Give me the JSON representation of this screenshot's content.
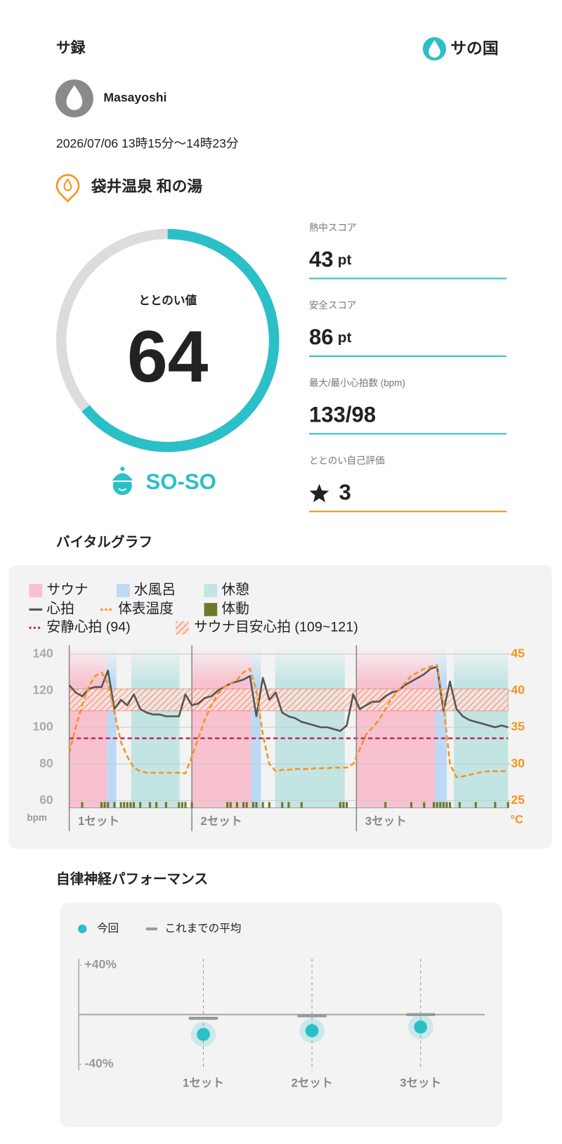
{
  "header": {
    "title": "サ録",
    "logo": "サの国"
  },
  "user": {
    "name": "Masayoshi"
  },
  "session": {
    "datetime": "2026/07/06 13時15分〜14時23分"
  },
  "facility": {
    "name": "袋井温泉 和の湯"
  },
  "gauge": {
    "label": "ととのい値",
    "value": 64,
    "color": "#2bbfc8"
  },
  "status": {
    "label": "SO-SO"
  },
  "scores": [
    {
      "label": "熱中スコア",
      "value": 43,
      "unit": "pt",
      "color": "#2bbfc8"
    },
    {
      "label": "安全スコア",
      "value": 86,
      "unit": "pt",
      "color": "#2bbfc8"
    },
    {
      "label": "最大/最小心拍数 (bpm)",
      "value": "133/98",
      "color": "#2bbfc8"
    },
    {
      "label": "ととのい自己評価",
      "value": 3,
      "icon": "star",
      "color": "#f7941d"
    }
  ],
  "chart_data": [
    {
      "type": "line",
      "title": "バイタルグラフ",
      "x": [
        0,
        1,
        2,
        3,
        4,
        5,
        6,
        7,
        8,
        9,
        10,
        11,
        12,
        13,
        14,
        15,
        16,
        17,
        18,
        19,
        20,
        21,
        22,
        23,
        24,
        25,
        26,
        27,
        28,
        29,
        30,
        31,
        32,
        33,
        34,
        35,
        36,
        37,
        38,
        39,
        40,
        41,
        42,
        43,
        44,
        45,
        46,
        47,
        48,
        49,
        50,
        51,
        52,
        53,
        54,
        55,
        56,
        57,
        58,
        59,
        60,
        61,
        62,
        63,
        64,
        65,
        66,
        67,
        68
      ],
      "xlim": [
        0,
        68
      ],
      "xticks": [
        {
          "value": 0,
          "label": "1セット"
        },
        {
          "value": 19,
          "label": "2セット"
        },
        {
          "value": 44.5,
          "label": "3セット"
        }
      ],
      "ylim": [
        56,
        144
      ],
      "yticks": [
        60,
        80,
        100,
        120,
        140
      ],
      "ylabel": "bpm",
      "y2lim": [
        24,
        46
      ],
      "y2ticks": [
        25,
        30,
        35,
        40,
        45
      ],
      "y2label": "°C",
      "grid": true,
      "bands": [
        {
          "name": "サウナ",
          "color": "#f8c1cf",
          "spans": [
            [
              0,
              5.9
            ],
            [
              19,
              28.2
            ],
            [
              44.5,
              56.7
            ]
          ]
        },
        {
          "name": "水風呂",
          "color": "#bcd9f5",
          "spans": [
            [
              5.9,
              7.3
            ],
            [
              28.2,
              29.7
            ],
            [
              56.7,
              58.5
            ]
          ]
        },
        {
          "name": "休憩",
          "color": "#c2e4e3",
          "spans": [
            [
              9.6,
              17.1
            ],
            [
              31.9,
              42.7
            ],
            [
              59.6,
              68
            ]
          ]
        }
      ],
      "series": [
        {
          "name": "心拍",
          "color": "#555555",
          "values": [
            123,
            119,
            117,
            121,
            122,
            122,
            131,
            110,
            115,
            112,
            118,
            110,
            108,
            107,
            107,
            106,
            106,
            106,
            118,
            112,
            113,
            116,
            117,
            120,
            122,
            124,
            125,
            126,
            128,
            106,
            127,
            115,
            119,
            108,
            106,
            105,
            103,
            102,
            101,
            100,
            100,
            99,
            98,
            101,
            118,
            110,
            112,
            114,
            114,
            117,
            119,
            120,
            123,
            125,
            127,
            129,
            132,
            133,
            109,
            125,
            110,
            106,
            104,
            103,
            102,
            101,
            100,
            101,
            100
          ]
        },
        {
          "name": "体表温度",
          "color": "#f7941d",
          "axis": "y2",
          "dashed": true,
          "values": [
            31.5,
            35,
            38,
            40.5,
            42,
            42.5,
            41,
            37,
            33,
            31,
            29.5,
            29,
            28.8,
            28.8,
            28.8,
            28.8,
            28.8,
            28.8,
            28.7,
            31,
            33.5,
            36,
            38,
            39.5,
            40.5,
            41,
            41.5,
            42.5,
            43,
            40,
            34,
            30,
            29,
            29.2,
            29.2,
            29.3,
            29.3,
            29.3,
            29.4,
            29.4,
            29.4,
            29.5,
            29.5,
            29.5,
            30,
            32,
            34,
            35,
            36,
            37.5,
            39,
            40,
            41,
            42,
            42.5,
            43,
            43.3,
            43.5,
            38,
            30,
            28.2,
            28.3,
            28.5,
            28.7,
            28.9,
            29,
            29,
            29,
            29
          ]
        }
      ],
      "movement": {
        "name": "体動",
        "color": "#6b7a2a",
        "x": [
          2,
          5,
          5.5,
          6,
          7,
          8,
          8.5,
          9,
          9.5,
          10,
          11,
          12.5,
          13.5,
          15,
          17,
          17.5,
          18,
          19,
          24.5,
          25,
          26,
          27,
          27.5,
          28.5,
          29,
          30,
          31,
          33,
          34,
          36,
          42,
          42.5,
          43,
          49,
          53,
          55,
          56.5,
          57,
          57.5,
          58,
          58.5,
          59,
          60.5,
          63,
          66,
          68
        ]
      },
      "reference_line": {
        "name": "安静心拍 (94)",
        "color": "#c0335a",
        "value": 94
      },
      "reference_band": {
        "name": "サウナ目安心拍 (109~121)",
        "color": "#e8603c",
        "range": [
          109,
          121
        ]
      }
    },
    {
      "type": "dot",
      "title": "自律神経パフォーマンス",
      "categories": [
        "1セット",
        "2セット",
        "3セット"
      ],
      "ylim": [
        -45,
        45
      ],
      "yticks": [
        {
          "value": 40,
          "label": "+40%"
        },
        {
          "value": -40,
          "label": "-40%"
        }
      ],
      "series": [
        {
          "name": "今回",
          "color": "#2bbfc8",
          "values": [
            -16,
            -13,
            -10
          ]
        },
        {
          "name": "これまでの平均",
          "color": "#999999",
          "values": [
            -3,
            -1,
            0
          ]
        }
      ]
    }
  ]
}
